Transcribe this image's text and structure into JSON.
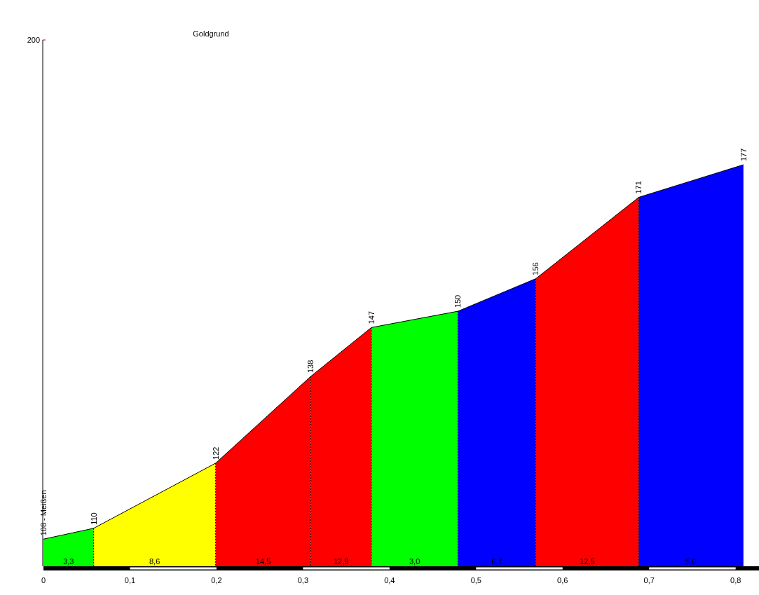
{
  "chart_data": {
    "type": "area",
    "title": "Goldgrund",
    "xlim": [
      0,
      0.827
    ],
    "ylim": [
      103,
      200
    ],
    "xticks": [
      0,
      {
        "value": 0.1,
        "label": "0,1"
      },
      {
        "value": 0.2,
        "label": "0,2"
      },
      {
        "value": 0.3,
        "label": "0,3"
      },
      {
        "value": 0.4,
        "label": "0,4"
      },
      {
        "value": 0.5,
        "label": "0,5"
      },
      {
        "value": 0.6,
        "label": "0,6"
      },
      {
        "value": 0.7,
        "label": "0,7"
      },
      {
        "value": 0.8,
        "label": "0,8"
      }
    ],
    "line_style": "dashed",
    "series": [
      {
        "color": "#00ff00",
        "x": [
          0,
          0.058
        ],
        "values": [
          108,
          110
        ],
        "value_labels": [
          "108 - Meißen",
          "110"
        ]
      },
      {
        "color": "#ffff00",
        "x": [
          0.058,
          0.199
        ],
        "values": [
          110,
          122
        ],
        "value_labels": [
          null,
          "122"
        ]
      },
      {
        "color": "#ff0000",
        "x": [
          0.199,
          0.309
        ],
        "values": [
          122,
          138
        ],
        "value_labels": [
          null,
          "138"
        ]
      },
      {
        "color": "#ff0000",
        "x": [
          0.309,
          0.379
        ],
        "values": [
          138,
          147
        ],
        "value_labels": [
          null,
          "147"
        ]
      },
      {
        "color": "#00ff00",
        "x": [
          0.379,
          0.479
        ],
        "values": [
          147,
          150
        ],
        "value_labels": [
          null,
          "150"
        ]
      },
      {
        "color": "#0000ff",
        "x": [
          0.479,
          0.569
        ],
        "values": [
          150,
          156
        ],
        "value_labels": [
          null,
          "156"
        ]
      },
      {
        "color": "#ff0000",
        "x": [
          0.569,
          0.688
        ],
        "values": [
          156,
          171
        ],
        "value_labels": [
          null,
          "171"
        ]
      },
      {
        "color": "#0000ff",
        "x": [
          0.688,
          0.809
        ],
        "values": [
          171,
          177
        ],
        "value_labels": [
          null,
          "177"
        ]
      }
    ],
    "annotations": [
      "200",
      "3,3",
      "8,6",
      "14,5",
      "12,9",
      "3,0",
      "6,7",
      "12,5",
      "5,0"
    ]
  }
}
